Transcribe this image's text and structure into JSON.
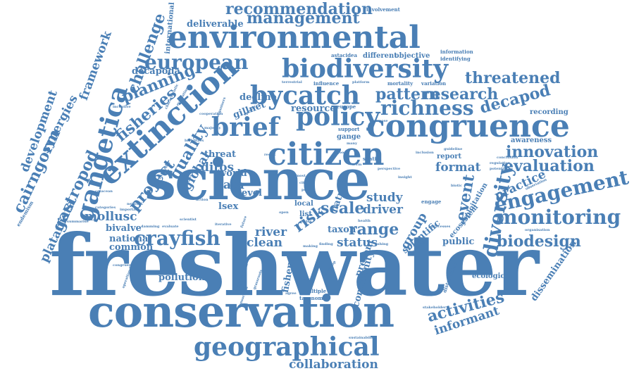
{
  "theme": {
    "word_color": "#4a7fb5",
    "background": "#ffffff"
  },
  "words": {
    "freshwater": "freshwater",
    "science": "science",
    "conservation": "conservation",
    "citizen": "citizen",
    "extinction": "extinction",
    "environmental": "environmental",
    "congruence": "congruence",
    "biodiversity": "biodiversity",
    "geographical": "geographical",
    "gangetica": "gangetica",
    "bycatch": "bycatch",
    "brief": "brief",
    "policy": "policy",
    "engagement": "engagement",
    "monitoring": "monitoring",
    "diversity": "diversity",
    "richness": "richness",
    "crayfish": "crayfish",
    "european": "european",
    "management": "management",
    "recommendation": "recommendation",
    "evaluation": "evaluation",
    "scale": "scale",
    "risk": "risk",
    "biodesign": "biodesign",
    "threatened": "threatened",
    "research": "research",
    "pattern": "pattern",
    "planning": "planning",
    "fisheries": "fisheries",
    "challenge": "challenge",
    "cairngorm": "cairngorm",
    "gastropod": "gastropod",
    "synergies": "synergies",
    "development": "development",
    "framework": "framework",
    "platanista": "platanista",
    "quality": "quality",
    "project": "project",
    "global": "global",
    "data": "data",
    "mollusc": "mollusc",
    "range": "range",
    "event": "event",
    "innovation": "innovation",
    "practice": "practice",
    "decapod": "decapod",
    "activities": "activities",
    "informant": "informant",
    "collaboration": "collaboration",
    "knowledge": "knowledge",
    "outreach": "outreach",
    "biological": "biological",
    "sustainable": "sustainable",
    "study": "study",
    "driver": "driver",
    "group": "group",
    "format": "format",
    "river": "river",
    "clean": "clean",
    "status": "status",
    "ditos": "ditos",
    "threat": "threat",
    "deliverable": "deliverable",
    "international": "international",
    "decapoda": "decapoda",
    "gillnet": "gillnet",
    "decline": "decline",
    "resource": "resource",
    "world": "world",
    "lsex": "lsex",
    "level": "level",
    "national": "national",
    "common": "common",
    "bivalve": "bivalve",
    "pollution": "pollution",
    "fishery": "fishery",
    "community": "community",
    "present": "present",
    "public": "public",
    "ecosystem": "ecosystem",
    "scientific": "scientific",
    "ecological": "ecological",
    "dissemination": "dissemination",
    "exploitation": "exploitation",
    "taxon": "taxon",
    "nature": "nature",
    "local": "local",
    "list": "list",
    "report": "report",
    "awareness": "awareness",
    "recording": "recording",
    "information": "information",
    "identifying": "identifying",
    "objective": "objective",
    "different": "different",
    "astacidea": "astacidea",
    "involvement": "involvement",
    "variation": "variation",
    "mortality": "mortality",
    "influence": "influence",
    "terrestrial": "terrestrial",
    "endemism": "endemism",
    "network": "network",
    "categories": "categories",
    "cetacean": "cetacean",
    "summarise": "summarise",
    "evaluate": "evaluate",
    "approach": "approach",
    "multiple": "multiple",
    "taxonomic": "taxonomic",
    "distribution": "distribution",
    "stakeholder": "stakeholder",
    "sustainability": "sustainability",
    "engage": "engage",
    "europe": "europe",
    "support": "support",
    "gange": "gange",
    "incentive": "incentive",
    "balancing": "balancing",
    "evaluating": "evaluating",
    "characteristic": "characteristic",
    "organisers": "organisers",
    "specific": "specific",
    "good": "good",
    "spatial": "spatial",
    "main": "main",
    "insight": "insight",
    "guideline": "guideline",
    "conclusion": "conclusion",
    "observation": "observation",
    "organisation": "organisation",
    "processes": "processes",
    "making": "making",
    "finding": "finding",
    "fishing": "fishing",
    "health": "health",
    "grassroots": "grassroots",
    "workshop": "workshop",
    "congruent": "congruent",
    "operational": "operational",
    "consortium": "consortium",
    "scientist": "scientist",
    "damming": "damming",
    "important": "important",
    "regulation": "regulation",
    "potential": "potential",
    "biotic": "biotic",
    "inclusion": "inclusion",
    "affordable": "affordable",
    "action": "action",
    "strategies": "strategies",
    "majority": "majority",
    "platform": "platform",
    "most": "most",
    "result": "result",
    "city": "city",
    "many": "many",
    "purpose": "purpose",
    "bioblitzes": "bioblitzes",
    "cooperation": "cooperation",
    "iterative": "iterative",
    "criterion": "criterion",
    "agree": "agree",
    "future": "future",
    "pebr": "pebr",
    "series": "series",
    "open": "open",
    "perspective": "perspective",
    "term": "term"
  }
}
